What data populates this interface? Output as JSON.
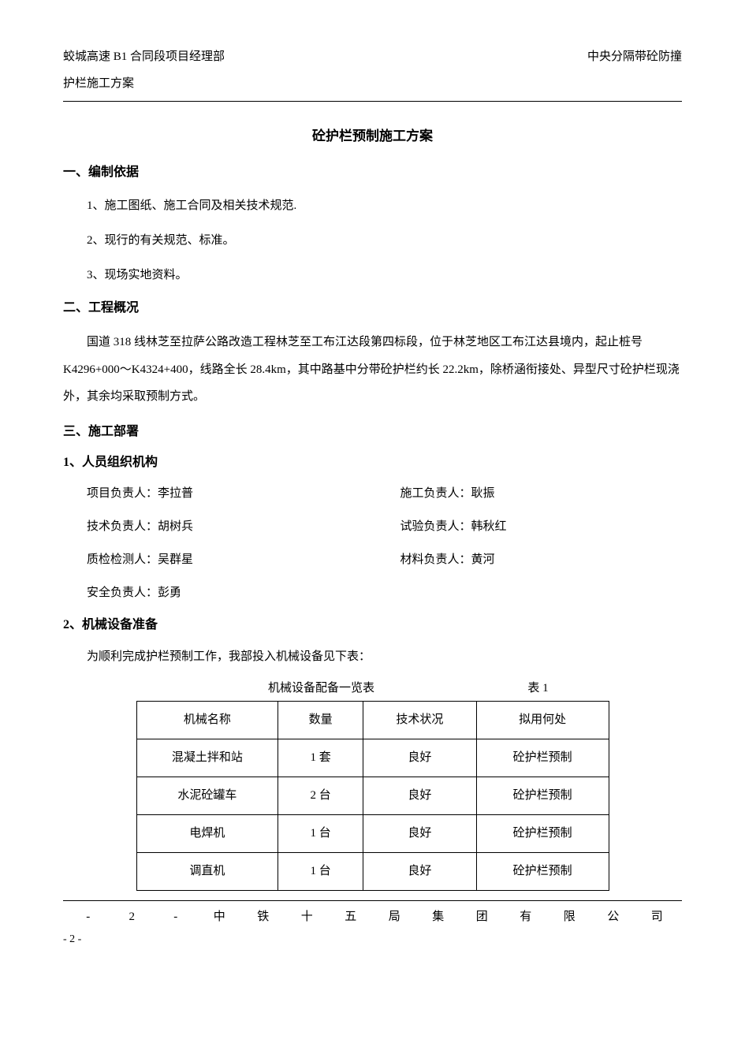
{
  "header": {
    "left": "蛟城高速 B1 合同段项目经理部",
    "right": "中央分隔带砼防撞",
    "sub": "护栏施工方案"
  },
  "title": "砼护栏预制施工方案",
  "section1": {
    "heading": "一、编制依据",
    "items": [
      "1、施工图纸、施工合同及相关技术规范.",
      "2、现行的有关规范、标准。",
      "3、现场实地资料。"
    ]
  },
  "section2": {
    "heading": "二、工程概况",
    "paragraph": "国道 318 线林芝至拉萨公路改造工程林芝至工布江达段第四标段，位于林芝地区工布江达县境内，起止桩号 K4296+000～K4324+400，线路全长 28.4km，其中路基中分带砼护栏约长 22.2km，除桥涵衔接处、异型尺寸砼护栏现浇外，其余均采取预制方式。"
  },
  "section3": {
    "heading": "三、施工部署",
    "sub1_heading": "1、人员组织机构",
    "personnel": [
      {
        "left": "项目负责人：李拉普",
        "right": "施工负责人：耿振"
      },
      {
        "left": "技术负责人：胡树兵",
        "right": "试验负责人：韩秋红"
      },
      {
        "left": "质检检测人：吴群星",
        "right": "材料负责人：黄河"
      }
    ],
    "personnel_last": "安全负责人：彭勇",
    "sub2_heading": "2、机械设备准备",
    "sub2_para": "为顺利完成护栏预制工作，我部投入机械设备见下表：",
    "table_caption": "机械设备配备一览表",
    "table_label": "表 1",
    "table_columns": [
      "机械名称",
      "数量",
      "技术状况",
      "拟用何处"
    ],
    "table_rows": [
      [
        "混凝土拌和站",
        "1 套",
        "良好",
        "砼护栏预制"
      ],
      [
        "水泥砼罐车",
        "2 台",
        "良好",
        "砼护栏预制"
      ],
      [
        "电焊机",
        "1 台",
        "良好",
        "砼护栏预制"
      ],
      [
        "调直机",
        "1 台",
        "良好",
        "砼护栏预制"
      ]
    ],
    "col_widths": [
      "30%",
      "18%",
      "24%",
      "28%"
    ]
  },
  "footer": {
    "chars": [
      "-",
      "2",
      "-",
      "中",
      "铁",
      "十",
      "五",
      "局",
      "集",
      "团",
      "有",
      "限",
      "公",
      "司"
    ],
    "page": "- 2 -"
  },
  "colors": {
    "text": "#000000",
    "background": "#ffffff",
    "border": "#000000"
  }
}
